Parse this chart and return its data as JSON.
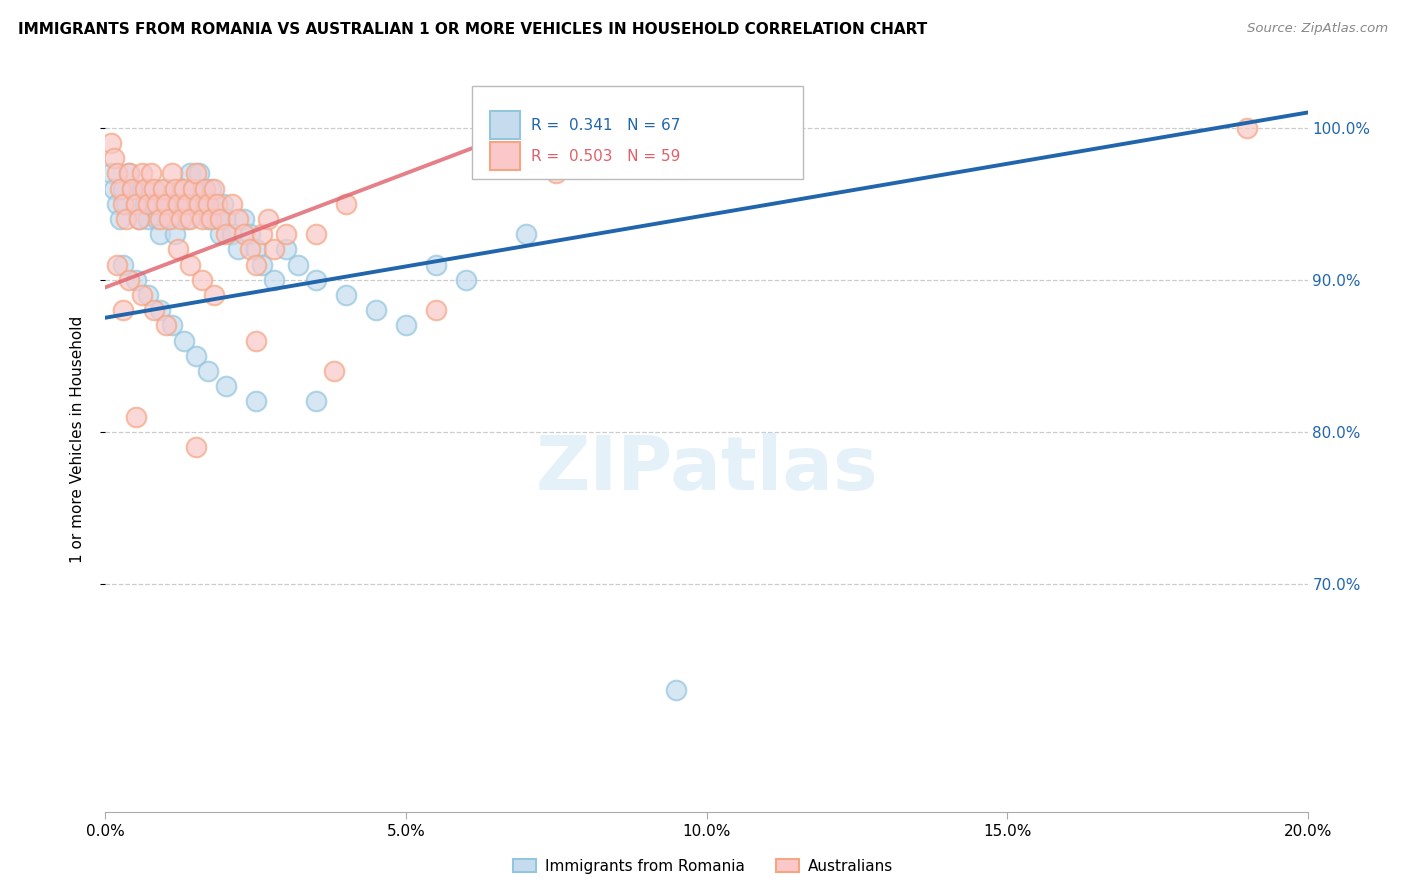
{
  "title": "IMMIGRANTS FROM ROMANIA VS AUSTRALIAN 1 OR MORE VEHICLES IN HOUSEHOLD CORRELATION CHART",
  "source": "Source: ZipAtlas.com",
  "ylabel": "1 or more Vehicles in Household",
  "xmin": 0.0,
  "xmax": 20.0,
  "ymin": 55.0,
  "ymax": 104.0,
  "ytick_vals": [
    70.0,
    80.0,
    90.0,
    100.0
  ],
  "xtick_vals": [
    0.0,
    5.0,
    10.0,
    15.0,
    20.0
  ],
  "legend_text_blue": "R =  0.341   N = 67",
  "legend_text_pink": "R =  0.503   N = 59",
  "legend_label_blue": "Immigrants from Romania",
  "legend_label_pink": "Australians",
  "blue_color": "#92c5de",
  "pink_color": "#f4a582",
  "blue_fill": "#c6dcee",
  "pink_fill": "#fac8c8",
  "blue_line_color": "#2166ac",
  "pink_line_color": "#e0606a",
  "watermark_text": "ZIPatlas",
  "blue_scatter_x": [
    0.1,
    0.15,
    0.2,
    0.25,
    0.3,
    0.35,
    0.4,
    0.45,
    0.5,
    0.55,
    0.6,
    0.65,
    0.7,
    0.75,
    0.8,
    0.85,
    0.9,
    0.95,
    1.0,
    1.05,
    1.1,
    1.15,
    1.2,
    1.25,
    1.3,
    1.35,
    1.4,
    1.45,
    1.5,
    1.55,
    1.6,
    1.65,
    1.7,
    1.75,
    1.8,
    1.85,
    1.9,
    1.95,
    2.0,
    2.1,
    2.2,
    2.3,
    2.4,
    2.5,
    2.6,
    2.8,
    3.0,
    3.2,
    3.5,
    4.0,
    4.5,
    5.0,
    5.5,
    6.0,
    7.0,
    0.3,
    0.5,
    0.7,
    0.9,
    1.1,
    1.3,
    1.5,
    1.7,
    2.0,
    2.5,
    3.5,
    9.5
  ],
  "blue_scatter_y": [
    97,
    96,
    95,
    94,
    96,
    95,
    97,
    96,
    95,
    94,
    96,
    95,
    94,
    96,
    95,
    94,
    93,
    95,
    96,
    95,
    94,
    93,
    95,
    96,
    95,
    94,
    97,
    96,
    95,
    97,
    96,
    95,
    94,
    96,
    95,
    94,
    93,
    95,
    94,
    93,
    92,
    94,
    93,
    92,
    91,
    90,
    92,
    91,
    90,
    89,
    88,
    87,
    91,
    90,
    93,
    91,
    90,
    89,
    88,
    87,
    86,
    85,
    84,
    83,
    82,
    82,
    63
  ],
  "pink_scatter_x": [
    0.1,
    0.15,
    0.2,
    0.25,
    0.3,
    0.35,
    0.4,
    0.45,
    0.5,
    0.55,
    0.6,
    0.65,
    0.7,
    0.75,
    0.8,
    0.85,
    0.9,
    0.95,
    1.0,
    1.05,
    1.1,
    1.15,
    1.2,
    1.25,
    1.3,
    1.35,
    1.4,
    1.45,
    1.5,
    1.55,
    1.6,
    1.65,
    1.7,
    1.75,
    1.8,
    1.85,
    1.9,
    2.0,
    2.1,
    2.2,
    2.3,
    2.4,
    2.5,
    2.6,
    2.7,
    2.8,
    3.0,
    3.5,
    4.0,
    0.2,
    0.4,
    0.6,
    0.8,
    1.0,
    1.2,
    1.4,
    1.6,
    1.8,
    19.0
  ],
  "pink_scatter_y": [
    99,
    98,
    97,
    96,
    95,
    94,
    97,
    96,
    95,
    94,
    97,
    96,
    95,
    97,
    96,
    95,
    94,
    96,
    95,
    94,
    97,
    96,
    95,
    94,
    96,
    95,
    94,
    96,
    97,
    95,
    94,
    96,
    95,
    94,
    96,
    95,
    94,
    93,
    95,
    94,
    93,
    92,
    91,
    93,
    94,
    92,
    93,
    93,
    95,
    91,
    90,
    89,
    88,
    87,
    92,
    91,
    90,
    89,
    100
  ],
  "pink_extra_x": [
    0.3,
    0.5,
    1.5,
    2.5,
    3.8,
    5.5,
    7.5
  ],
  "pink_extra_y": [
    88,
    81,
    79,
    86,
    84,
    88,
    97
  ],
  "blue_trend_x": [
    0.0,
    20.0
  ],
  "blue_trend_y": [
    87.5,
    101.0
  ],
  "pink_trend_x": [
    0.0,
    8.0
  ],
  "pink_trend_y": [
    89.5,
    101.5
  ]
}
